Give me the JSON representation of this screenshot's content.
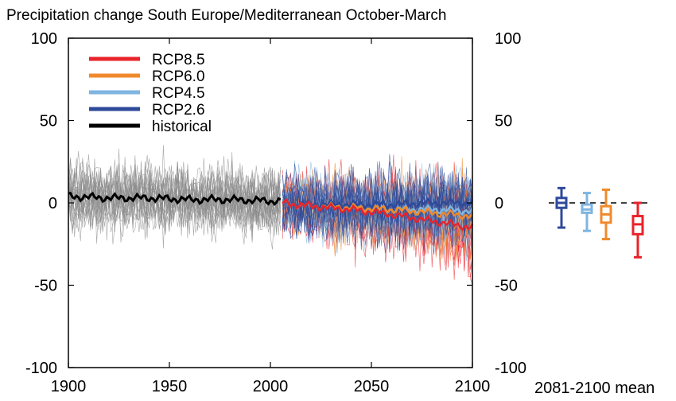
{
  "chart_data": {
    "type": "line",
    "title": "Precipitation change South Europe/Mediterranean October-March",
    "xlabel": "",
    "ylabel": "",
    "xlim": [
      1900,
      2100
    ],
    "ylim": [
      -100,
      100
    ],
    "x_ticks": [
      1900,
      1950,
      2000,
      2050,
      2100
    ],
    "y_ticks": [
      -100,
      -50,
      0,
      50,
      100
    ],
    "y_tick_labels": [
      "-100",
      "-50",
      "0",
      "50",
      "100"
    ],
    "grid": false,
    "legend_position": "top-left",
    "series": [
      {
        "name": "RCP8.5",
        "color": "#e8232a",
        "x": [
          2006,
          2020,
          2040,
          2060,
          2080,
          2100
        ],
        "y": [
          0,
          -2,
          -4,
          -7,
          -11,
          -15
        ]
      },
      {
        "name": "RCP6.0",
        "color": "#f08a2c",
        "x": [
          2006,
          2020,
          2040,
          2060,
          2080,
          2100
        ],
        "y": [
          0,
          -2,
          -3,
          -4,
          -6,
          -8
        ]
      },
      {
        "name": "RCP4.5",
        "color": "#7fb5e0",
        "x": [
          2006,
          2020,
          2040,
          2060,
          2080,
          2100
        ],
        "y": [
          0,
          -2,
          -3,
          -4,
          -4,
          -5
        ]
      },
      {
        "name": "RCP2.6",
        "color": "#2e4a9a",
        "x": [
          2006,
          2020,
          2040,
          2060,
          2080,
          2100
        ],
        "y": [
          0,
          -1,
          -1,
          -1,
          0,
          0
        ]
      },
      {
        "name": "historical",
        "color": "#000000",
        "x": [
          1900,
          1920,
          1940,
          1960,
          1980,
          2005
        ],
        "y": [
          4,
          3,
          3,
          2,
          2,
          1
        ]
      }
    ],
    "box_panel": {
      "label": "2081-2100 mean",
      "boxes": [
        {
          "series": "RCP2.6",
          "color": "#2e4a9a",
          "whisker_low": -15,
          "q1": -3,
          "median": 0,
          "q3": 3,
          "whisker_high": 9
        },
        {
          "series": "RCP4.5",
          "color": "#7fb5e0",
          "whisker_low": -17,
          "q1": -6,
          "median": -4,
          "q3": -1,
          "whisker_high": 6
        },
        {
          "series": "RCP6.0",
          "color": "#f08a2c",
          "whisker_low": -22,
          "q1": -12,
          "median": -7,
          "q3": -2,
          "whisker_high": 8
        },
        {
          "series": "RCP8.5",
          "color": "#e8232a",
          "whisker_low": -33,
          "q1": -19,
          "median": -13,
          "q3": -8,
          "whisker_high": 0
        }
      ]
    }
  }
}
